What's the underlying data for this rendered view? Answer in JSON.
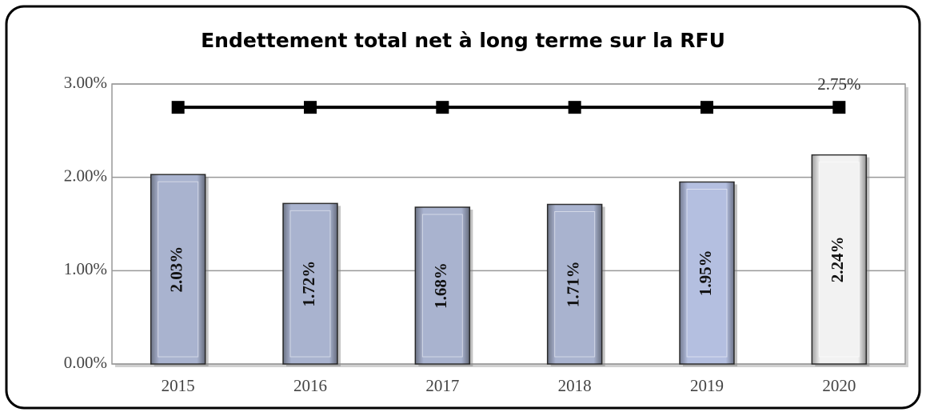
{
  "chart_data": {
    "type": "bar",
    "title": "Endettement total net à long terme sur la RFU",
    "categories": [
      "2015",
      "2016",
      "2017",
      "2018",
      "2019",
      "2020"
    ],
    "series": [
      {
        "type": "bar",
        "color": "#a9b3cf",
        "colors": [
          "#a9b3cf",
          "#a9b3cf",
          "#a9b3cf",
          "#a9b3cf",
          "#b4bfe0",
          "#f2f2f2"
        ],
        "values": [
          2.03,
          1.72,
          1.68,
          1.71,
          1.95,
          2.24
        ],
        "value_labels": [
          "2.03%",
          "1.72%",
          "1.68%",
          "1.71%",
          "1.95%",
          "2.24%"
        ]
      },
      {
        "type": "line",
        "color": "#000000",
        "values": [
          2.75,
          2.75,
          2.75,
          2.75,
          2.75,
          2.75
        ],
        "value_labels": [
          null,
          null,
          null,
          null,
          null,
          "2.75%"
        ]
      }
    ],
    "ylim": [
      0,
      3
    ],
    "yticks": [
      {
        "value": 0,
        "label": "0.00%"
      },
      {
        "value": 1,
        "label": "1.00%"
      },
      {
        "value": 2,
        "label": "2.00%"
      },
      {
        "value": 3,
        "label": "3.00%"
      }
    ],
    "grid": true
  }
}
